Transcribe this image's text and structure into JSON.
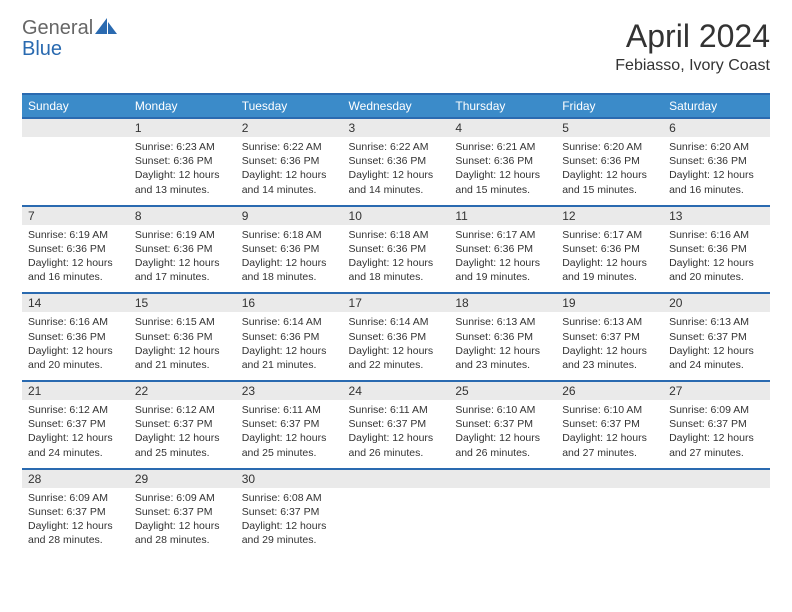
{
  "logo": {
    "text1": "General",
    "text2": "Blue"
  },
  "title": "April 2024",
  "location": "Febiasso, Ivory Coast",
  "colors": {
    "header_bg": "#3b8bc9",
    "header_border": "#2a6ab0",
    "daynum_bg": "#eaeaea",
    "text": "#333333"
  },
  "weekdays": [
    "Sunday",
    "Monday",
    "Tuesday",
    "Wednesday",
    "Thursday",
    "Friday",
    "Saturday"
  ],
  "weeks": [
    [
      null,
      {
        "n": "1",
        "sr": "6:23 AM",
        "ss": "6:36 PM",
        "dl": "12 hours and 13 minutes."
      },
      {
        "n": "2",
        "sr": "6:22 AM",
        "ss": "6:36 PM",
        "dl": "12 hours and 14 minutes."
      },
      {
        "n": "3",
        "sr": "6:22 AM",
        "ss": "6:36 PM",
        "dl": "12 hours and 14 minutes."
      },
      {
        "n": "4",
        "sr": "6:21 AM",
        "ss": "6:36 PM",
        "dl": "12 hours and 15 minutes."
      },
      {
        "n": "5",
        "sr": "6:20 AM",
        "ss": "6:36 PM",
        "dl": "12 hours and 15 minutes."
      },
      {
        "n": "6",
        "sr": "6:20 AM",
        "ss": "6:36 PM",
        "dl": "12 hours and 16 minutes."
      }
    ],
    [
      {
        "n": "7",
        "sr": "6:19 AM",
        "ss": "6:36 PM",
        "dl": "12 hours and 16 minutes."
      },
      {
        "n": "8",
        "sr": "6:19 AM",
        "ss": "6:36 PM",
        "dl": "12 hours and 17 minutes."
      },
      {
        "n": "9",
        "sr": "6:18 AM",
        "ss": "6:36 PM",
        "dl": "12 hours and 18 minutes."
      },
      {
        "n": "10",
        "sr": "6:18 AM",
        "ss": "6:36 PM",
        "dl": "12 hours and 18 minutes."
      },
      {
        "n": "11",
        "sr": "6:17 AM",
        "ss": "6:36 PM",
        "dl": "12 hours and 19 minutes."
      },
      {
        "n": "12",
        "sr": "6:17 AM",
        "ss": "6:36 PM",
        "dl": "12 hours and 19 minutes."
      },
      {
        "n": "13",
        "sr": "6:16 AM",
        "ss": "6:36 PM",
        "dl": "12 hours and 20 minutes."
      }
    ],
    [
      {
        "n": "14",
        "sr": "6:16 AM",
        "ss": "6:36 PM",
        "dl": "12 hours and 20 minutes."
      },
      {
        "n": "15",
        "sr": "6:15 AM",
        "ss": "6:36 PM",
        "dl": "12 hours and 21 minutes."
      },
      {
        "n": "16",
        "sr": "6:14 AM",
        "ss": "6:36 PM",
        "dl": "12 hours and 21 minutes."
      },
      {
        "n": "17",
        "sr": "6:14 AM",
        "ss": "6:36 PM",
        "dl": "12 hours and 22 minutes."
      },
      {
        "n": "18",
        "sr": "6:13 AM",
        "ss": "6:36 PM",
        "dl": "12 hours and 23 minutes."
      },
      {
        "n": "19",
        "sr": "6:13 AM",
        "ss": "6:37 PM",
        "dl": "12 hours and 23 minutes."
      },
      {
        "n": "20",
        "sr": "6:13 AM",
        "ss": "6:37 PM",
        "dl": "12 hours and 24 minutes."
      }
    ],
    [
      {
        "n": "21",
        "sr": "6:12 AM",
        "ss": "6:37 PM",
        "dl": "12 hours and 24 minutes."
      },
      {
        "n": "22",
        "sr": "6:12 AM",
        "ss": "6:37 PM",
        "dl": "12 hours and 25 minutes."
      },
      {
        "n": "23",
        "sr": "6:11 AM",
        "ss": "6:37 PM",
        "dl": "12 hours and 25 minutes."
      },
      {
        "n": "24",
        "sr": "6:11 AM",
        "ss": "6:37 PM",
        "dl": "12 hours and 26 minutes."
      },
      {
        "n": "25",
        "sr": "6:10 AM",
        "ss": "6:37 PM",
        "dl": "12 hours and 26 minutes."
      },
      {
        "n": "26",
        "sr": "6:10 AM",
        "ss": "6:37 PM",
        "dl": "12 hours and 27 minutes."
      },
      {
        "n": "27",
        "sr": "6:09 AM",
        "ss": "6:37 PM",
        "dl": "12 hours and 27 minutes."
      }
    ],
    [
      {
        "n": "28",
        "sr": "6:09 AM",
        "ss": "6:37 PM",
        "dl": "12 hours and 28 minutes."
      },
      {
        "n": "29",
        "sr": "6:09 AM",
        "ss": "6:37 PM",
        "dl": "12 hours and 28 minutes."
      },
      {
        "n": "30",
        "sr": "6:08 AM",
        "ss": "6:37 PM",
        "dl": "12 hours and 29 minutes."
      },
      null,
      null,
      null,
      null
    ]
  ],
  "labels": {
    "sunrise": "Sunrise:",
    "sunset": "Sunset:",
    "daylight": "Daylight:"
  }
}
